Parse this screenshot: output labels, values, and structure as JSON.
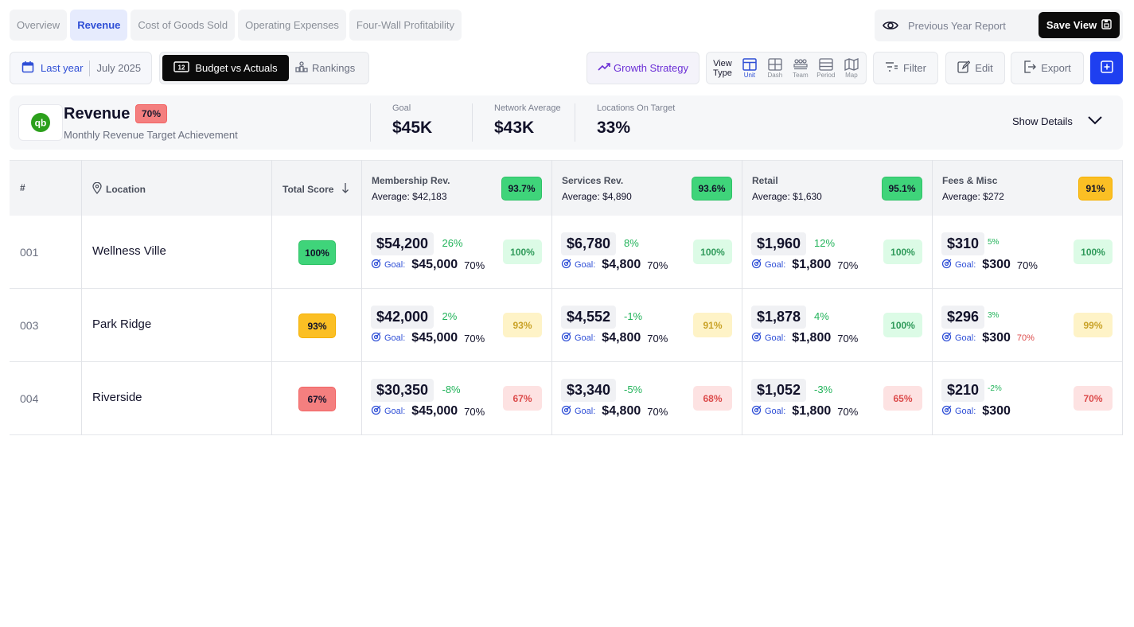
{
  "tabs": [
    "Overview",
    "Revenue",
    "Cost of Goods Sold",
    "Operating Expenses",
    "Four-Wall Profitability"
  ],
  "active_tab": "Revenue",
  "header": {
    "previous_year_report": "Previous Year Report",
    "save_view": "Save View"
  },
  "toolbar": {
    "date_range": "Last year",
    "month": "July 2025",
    "budget_vs_actuals": "Budget vs Actuals",
    "rankings": "Rankings",
    "growth_strategy": "Growth Strategy",
    "view_type_label_1": "View",
    "view_type_label_2": "Type",
    "view_types": [
      "Unit",
      "Dash",
      "Team",
      "Period",
      "Map"
    ],
    "active_view_type": "Unit",
    "filter": "Filter",
    "edit": "Edit",
    "export": "Export"
  },
  "summary": {
    "title": "Revenue",
    "badge": "70%",
    "subtitle": "Monthly Revenue Target Achievement",
    "goal_label": "Goal",
    "goal_value": "$45K",
    "network_label": "Network Average",
    "network_value": "$43K",
    "on_target_label": "Locations On Target",
    "on_target_value": "33%",
    "show_details": "Show Details"
  },
  "table": {
    "col_num": "#",
    "col_location": "Location",
    "col_total": "Total Score",
    "metrics": [
      {
        "name": "Membership Rev.",
        "average": "$42,183",
        "score": "93.7%"
      },
      {
        "name": "Services Rev.",
        "average": "$4,890",
        "score": "93.6%"
      },
      {
        "name": "Retail",
        "average": "$1,630",
        "score": "95.1%"
      },
      {
        "name": "Fees & Misc",
        "average": "$272",
        "score": "91%"
      }
    ],
    "average_prefix": "Average:",
    "goal_prefix": "Goal:",
    "rows": [
      {
        "num": "001",
        "location": "Wellness Ville",
        "total": "100%",
        "cells": [
          {
            "value": "$54,200",
            "change": "26%",
            "goal": "$45,000",
            "pct": "70%",
            "score": "100%"
          },
          {
            "value": "$6,780",
            "change": "8%",
            "goal": "$4,800",
            "pct": "70%",
            "score": "100%"
          },
          {
            "value": "$1,960",
            "change": "12%",
            "goal": "$1,800",
            "pct": "70%",
            "score": "100%"
          },
          {
            "value": "$310",
            "change": "5%",
            "goal": "$300",
            "pct": "70%",
            "score": "100%"
          }
        ]
      },
      {
        "num": "003",
        "location": "Park Ridge",
        "total": "93%",
        "cells": [
          {
            "value": "$42,000",
            "change": "2%",
            "goal": "$45,000",
            "pct": "70%",
            "score": "93%"
          },
          {
            "value": "$4,552",
            "change": "-1%",
            "goal": "$4,800",
            "pct": "70%",
            "score": "91%"
          },
          {
            "value": "$1,878",
            "change": "4%",
            "goal": "$1,800",
            "pct": "70%",
            "score": "100%"
          },
          {
            "value": "$296",
            "change": "3%",
            "goal": "$300",
            "pct": "70%",
            "score": "99%"
          }
        ]
      },
      {
        "num": "004",
        "location": "Riverside",
        "total": "67%",
        "cells": [
          {
            "value": "$30,350",
            "change": "-8%",
            "goal": "$45,000",
            "pct": "70%",
            "score": "67%"
          },
          {
            "value": "$3,340",
            "change": "-5%",
            "goal": "$4,800",
            "pct": "70%",
            "score": "68%"
          },
          {
            "value": "$1,052",
            "change": "-3%",
            "goal": "$1,800",
            "pct": "70%",
            "score": "65%"
          },
          {
            "value": "$210",
            "change": "-2%",
            "goal": "$300",
            "pct": "",
            "score": "70%"
          }
        ]
      }
    ]
  },
  "colors": {
    "accent": "#2f4fd6",
    "strong_green": "#3fd47a",
    "strong_yellow": "#fbbf24",
    "strong_red": "#f47f7f",
    "light_green": "#dcfbe6",
    "light_yellow": "#fef3c7",
    "light_red": "#fde2e2",
    "change_green": "#22b35a"
  }
}
